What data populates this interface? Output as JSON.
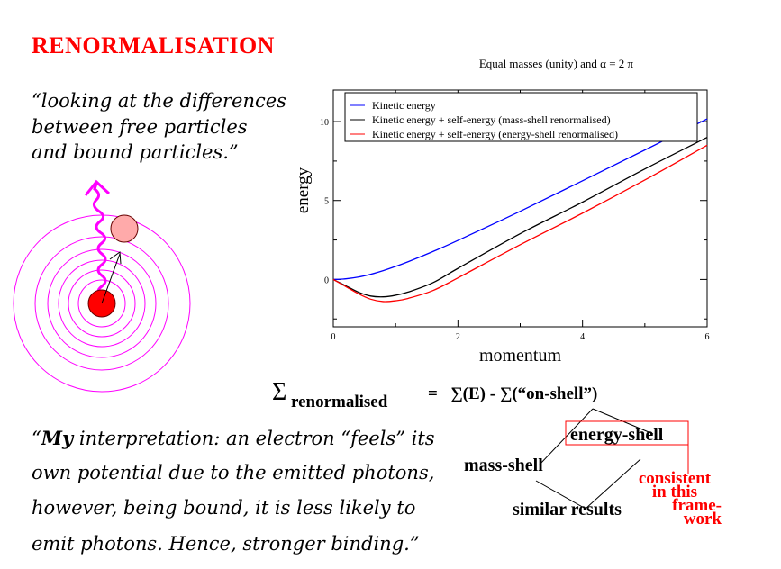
{
  "slide": {
    "title": "RENORMALISATION",
    "intro_quote": [
      "“looking at the differences",
      " between free particles",
      "and bound particles.”"
    ],
    "formula": {
      "sigma": "Σ",
      "subscript": "renormalised",
      "rhs": "=   ∑(E) - ∑(“on-shell”)"
    },
    "diagram": {
      "energy_shell": "energy-shell",
      "mass_shell": "mass-shell",
      "similar": "similar results",
      "consistent": [
        "consistent",
        "in this",
        "frame-",
        "work"
      ]
    },
    "interpretation": {
      "open": "“",
      "my": "My",
      "lines": [
        " interpretation: an electron “feels” its",
        "own potential due to the emitted photons,",
        "however, being bound, it is less likely to",
        "emit photons. Hence, stronger binding.”"
      ]
    },
    "colors": {
      "title": "#ff0000",
      "orbit": "#ff00ff",
      "nucleus": "#ff0000",
      "electron": "#ffaaaa"
    }
  },
  "chart_data": {
    "type": "line",
    "title": "Equal masses (unity) and α = 2 π",
    "xlabel": "momentum",
    "ylabel": "energy",
    "xlim": [
      0,
      6
    ],
    "ylim": [
      -3,
      12
    ],
    "xticks": [
      "0",
      "2",
      "4",
      "6"
    ],
    "yticks": [
      "0",
      "5",
      "10"
    ],
    "grid": false,
    "legend_placement": "top",
    "x": [
      0,
      0.2,
      0.4,
      0.6,
      0.8,
      1.0,
      1.2,
      1.6,
      2,
      3,
      4,
      5,
      6
    ],
    "series": [
      {
        "name": "Kinetic energy",
        "color": "#0000ff",
        "values": [
          0,
          0.04,
          0.15,
          0.33,
          0.56,
          0.83,
          1.12,
          1.77,
          2.47,
          4.32,
          6.25,
          8.2,
          10.17
        ]
      },
      {
        "name": "Kinetic energy + self-energy (mass-shell renormalised)",
        "color": "#000000",
        "values": [
          0,
          -0.4,
          -0.8,
          -1.05,
          -1.1,
          -1.0,
          -0.8,
          -0.2,
          0.7,
          2.9,
          4.9,
          7.0,
          9.0
        ]
      },
      {
        "name": "Kinetic energy + self-energy (energy-shell renormalised)",
        "color": "#ff0000",
        "values": [
          0,
          -0.45,
          -0.9,
          -1.25,
          -1.4,
          -1.35,
          -1.2,
          -0.7,
          0.1,
          2.2,
          4.2,
          6.3,
          8.5
        ]
      }
    ]
  }
}
